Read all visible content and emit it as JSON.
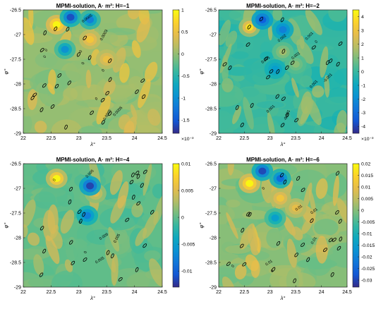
{
  "chart_data": [
    {
      "type": "heatmap",
      "title": "MPMI-solution, A· m²: H=−1",
      "xlabel": "λ°",
      "ylabel": "φ°",
      "xlim": [
        22,
        24.5
      ],
      "ylim": [
        -29,
        -26.5
      ],
      "x_ticks": [
        "22",
        "22.5",
        "23",
        "23.5",
        "24",
        "24.5"
      ],
      "y_ticks": [
        "-26.5",
        "-27",
        "-27.5",
        "-28",
        "-28.5",
        "-29"
      ],
      "colorbar": {
        "ticks": [
          "1",
          "0.5",
          "0",
          "-0.5",
          "-1",
          "-1.5"
        ],
        "range": [
          -1.8,
          1
        ],
        "exponent": "×10⁻³"
      },
      "contour_labels": [
        "0.0005",
        "0.0005",
        "0.0005",
        "0.0003",
        "0",
        "0",
        "0",
        "0",
        "0",
        "0"
      ],
      "hot_spots": [
        [
          22.6,
          -26.8,
          1
        ],
        [
          23.2,
          -27.1,
          0.6
        ],
        [
          23.5,
          -27.5,
          0.5
        ],
        [
          22.75,
          -27.3,
          -1.0
        ]
      ],
      "cold_spots": [
        [
          22.85,
          -26.65,
          -1.6
        ],
        [
          23.2,
          -26.7,
          -1.2
        ]
      ]
    },
    {
      "type": "heatmap",
      "title": "MPMI-solution, A· m²: H=−2",
      "xlabel": "λ°",
      "ylabel": "φ°",
      "xlim": [
        22,
        24.5
      ],
      "ylim": [
        -29,
        -26.5
      ],
      "x_ticks": [
        "22",
        "22.5",
        "23",
        "23.5",
        "24",
        "24.5"
      ],
      "y_ticks": [
        "-26.5",
        "-27",
        "-27.5",
        "-28",
        "-28.5",
        "-29"
      ],
      "colorbar": {
        "ticks": [
          "4",
          "3",
          "2",
          "1",
          "0",
          "-1",
          "-2",
          "-3",
          "-4"
        ],
        "range": [
          -4.5,
          4.5
        ],
        "exponent": "×10⁻³"
      },
      "contour_labels": [
        "0.002",
        "0.001",
        "-0.001",
        "0.001",
        "0.001",
        "-0.001",
        "0.001",
        "0.001",
        "0"
      ],
      "hot_spots": [
        [
          22.6,
          -26.85,
          4
        ],
        [
          23.25,
          -27.35,
          1.5
        ],
        [
          23.5,
          -27.6,
          1.2
        ]
      ],
      "cold_spots": [
        [
          22.85,
          -26.7,
          -3.5
        ],
        [
          23.25,
          -26.9,
          -2.5
        ],
        [
          23.1,
          -27.7,
          -1.5
        ]
      ]
    },
    {
      "type": "heatmap",
      "title": "MPMI-solution, A· m²: H=−4",
      "xlabel": "λ°",
      "ylabel": "φ°",
      "xlim": [
        22,
        24.5
      ],
      "ylim": [
        -29,
        -26.5
      ],
      "x_ticks": [
        "22",
        "22.5",
        "23",
        "23.5",
        "24",
        "24.5"
      ],
      "y_ticks": [
        "-26.5",
        "-27",
        "-27.5",
        "-28",
        "-28.5",
        "-29"
      ],
      "colorbar": {
        "ticks": [
          "0.01",
          "0.005",
          "0",
          "-0.005",
          "-0.01"
        ],
        "range": [
          -0.013,
          0.01
        ],
        "exponent": ""
      },
      "contour_labels": [
        "0.005",
        "0.005",
        "0.005",
        "0.005",
        "0",
        "0",
        "0"
      ],
      "hot_spots": [
        [
          22.6,
          -26.8,
          0.01
        ],
        [
          23.3,
          -27.1,
          0.005
        ]
      ],
      "cold_spots": [
        [
          23.2,
          -26.95,
          -0.012
        ],
        [
          23.15,
          -27.55,
          -0.008
        ]
      ]
    },
    {
      "type": "heatmap",
      "title": "MPMI-solution, A· m²: H=−6",
      "xlabel": "λ°",
      "ylabel": "φ°",
      "xlim": [
        22,
        24.5
      ],
      "ylim": [
        -29,
        -26.5
      ],
      "x_ticks": [
        "22",
        "22.5",
        "23",
        "23.5",
        "24",
        "24.5"
      ],
      "y_ticks": [
        "-26.5",
        "-27",
        "-27.5",
        "-28",
        "-28.5",
        "-29"
      ],
      "colorbar": {
        "ticks": [
          "0.02",
          "0.015",
          "0.01",
          "0.005",
          "0",
          "-0.005",
          "-0.01",
          "-0.015",
          "-0.02",
          "-0.025",
          "-0.03"
        ],
        "range": [
          -0.033,
          0.02
        ],
        "exponent": ""
      },
      "contour_labels": [
        "0.01",
        "0.01",
        "0",
        "0.01",
        "0.01",
        "0",
        "0"
      ],
      "hot_spots": [
        [
          22.6,
          -26.9,
          0.02
        ],
        [
          23.2,
          -27.2,
          0.012
        ],
        [
          23.5,
          -27.4,
          0.01
        ]
      ],
      "cold_spots": [
        [
          22.85,
          -26.65,
          -0.03
        ],
        [
          23.2,
          -26.8,
          -0.025
        ],
        [
          23.1,
          -27.6,
          -0.015
        ]
      ]
    }
  ]
}
